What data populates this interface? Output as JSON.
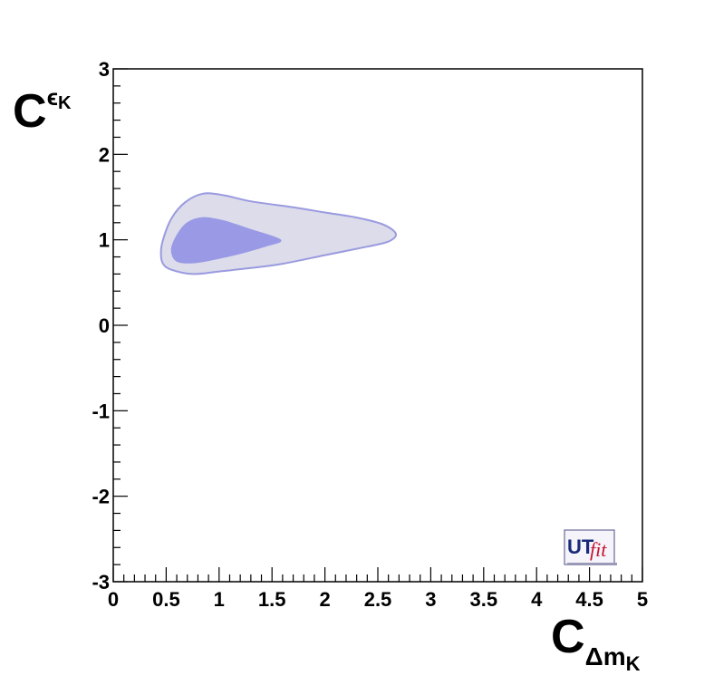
{
  "chart_data": {
    "type": "contour",
    "xlabel": {
      "main": "C",
      "sub": "Δm",
      "subsub": "K"
    },
    "ylabel": {
      "main": "C",
      "sub": "ϵ",
      "subsub": "K"
    },
    "xlim": [
      0,
      5
    ],
    "ylim": [
      -3,
      3
    ],
    "x_ticks": [
      0,
      0.5,
      1,
      1.5,
      2,
      2.5,
      3,
      3.5,
      4,
      4.5,
      5
    ],
    "x_tick_labels": [
      "0",
      "0.5",
      "1",
      "1.5",
      "2",
      "2.5",
      "3",
      "3.5",
      "4",
      "4.5",
      "5"
    ],
    "y_ticks": [
      -3,
      -2,
      -1,
      0,
      1,
      2,
      3
    ],
    "y_tick_labels": [
      "-3",
      "-2",
      "-1",
      "0",
      "1",
      "2",
      "3"
    ],
    "grid": false,
    "regions": [
      {
        "level": "outer",
        "fill": "#dcdcea",
        "stroke": "#9a9ae0",
        "points": [
          [
            0.45,
            0.84
          ],
          [
            0.47,
            1.0
          ],
          [
            0.55,
            1.25
          ],
          [
            0.68,
            1.44
          ],
          [
            0.85,
            1.54
          ],
          [
            1.05,
            1.52
          ],
          [
            1.3,
            1.45
          ],
          [
            1.7,
            1.38
          ],
          [
            2.0,
            1.32
          ],
          [
            2.3,
            1.26
          ],
          [
            2.55,
            1.18
          ],
          [
            2.67,
            1.07
          ],
          [
            2.6,
            0.98
          ],
          [
            2.4,
            0.92
          ],
          [
            2.0,
            0.82
          ],
          [
            1.6,
            0.72
          ],
          [
            1.3,
            0.67
          ],
          [
            1.0,
            0.63
          ],
          [
            0.75,
            0.6
          ],
          [
            0.55,
            0.65
          ],
          [
            0.47,
            0.72
          ]
        ]
      },
      {
        "level": "inner",
        "fill": "#9999e6",
        "stroke": "#9999e6",
        "points": [
          [
            0.55,
            0.88
          ],
          [
            0.6,
            1.05
          ],
          [
            0.7,
            1.2
          ],
          [
            0.85,
            1.26
          ],
          [
            1.05,
            1.22
          ],
          [
            1.3,
            1.12
          ],
          [
            1.58,
            1.0
          ],
          [
            1.45,
            0.93
          ],
          [
            1.2,
            0.84
          ],
          [
            0.95,
            0.77
          ],
          [
            0.75,
            0.73
          ],
          [
            0.6,
            0.75
          ]
        ]
      }
    ]
  },
  "logo": {
    "ut": "UT",
    "fit": "fit"
  }
}
